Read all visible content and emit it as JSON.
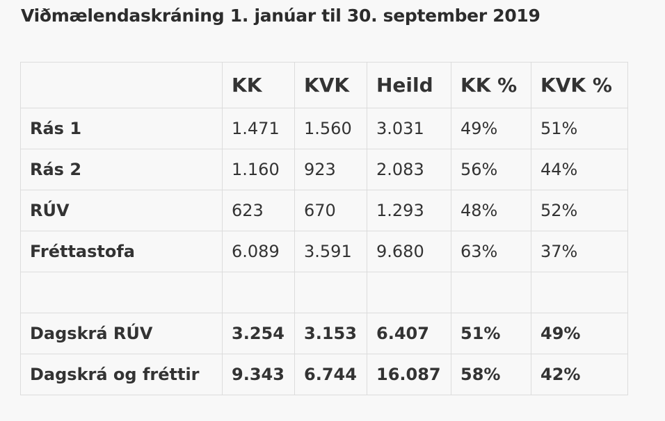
{
  "title": "Viðmælendaskráning 1. janúar til 30. september 2019",
  "table": {
    "headers": [
      "",
      "KK",
      "KVK",
      "Heild",
      "KK %",
      "KVK %"
    ],
    "rows": [
      {
        "label": "Rás 1",
        "kk": "1.471",
        "kvk": "1.560",
        "heild": "3.031",
        "kk_pct": "49%",
        "kvk_pct": "51%"
      },
      {
        "label": "Rás 2",
        "kk": "1.160",
        "kvk": "923",
        "heild": "2.083",
        "kk_pct": "56%",
        "kvk_pct": "44%"
      },
      {
        "label": "RÚV",
        "kk": "623",
        "kvk": "670",
        "heild": "1.293",
        "kk_pct": "48%",
        "kvk_pct": "52%"
      },
      {
        "label": "Fréttastofa",
        "kk": "6.089",
        "kvk": "3.591",
        "heild": "9.680",
        "kk_pct": "63%",
        "kvk_pct": "37%"
      },
      {
        "label": "",
        "kk": "",
        "kvk": "",
        "heild": "",
        "kk_pct": "",
        "kvk_pct": ""
      },
      {
        "label": "Dagskrá RÚV",
        "kk": "3.254",
        "kvk": "3.153",
        "heild": "6.407",
        "kk_pct": "51%",
        "kvk_pct": "49%"
      },
      {
        "label": "Dagskrá og fréttir",
        "kk": "9.343",
        "kvk": "6.744",
        "heild": "16.087",
        "kk_pct": "58%",
        "kvk_pct": "42%"
      }
    ]
  }
}
